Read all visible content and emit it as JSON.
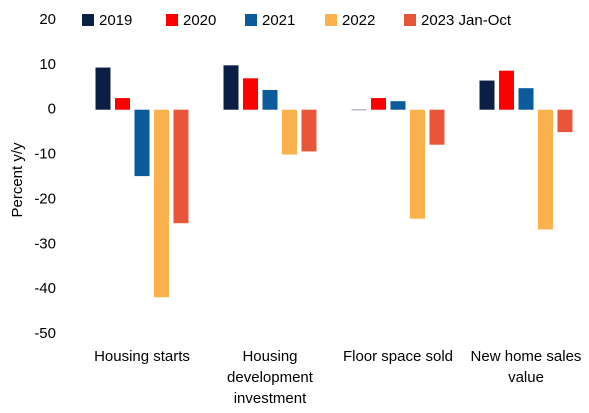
{
  "chart_data": {
    "type": "bar",
    "categories": [
      "Housing starts",
      "Housing development investment",
      "Floor space sold",
      "New home sales value"
    ],
    "series": [
      {
        "name": "2019",
        "color": "#0b1f44",
        "values": [
          9.4,
          9.9,
          -0.1,
          6.5
        ]
      },
      {
        "name": "2020",
        "color": "#ff0000",
        "values": [
          2.6,
          7.0,
          2.6,
          8.7
        ]
      },
      {
        "name": "2021",
        "color": "#0a5a9c",
        "values": [
          -14.8,
          4.4,
          1.9,
          4.8
        ]
      },
      {
        "name": "2022",
        "color": "#fbb24d",
        "values": [
          -41.8,
          -10.0,
          -24.3,
          -26.7
        ]
      },
      {
        "name": "2023 Jan-Oct",
        "color": "#e8563a",
        "values": [
          -25.3,
          -9.3,
          -7.8,
          -5.0
        ]
      }
    ],
    "y_label": "Percent y/y",
    "ylim": [
      -50,
      20
    ],
    "yticks": [
      -50,
      -40,
      -30,
      -20,
      -10,
      0,
      10,
      20
    ],
    "grid": false,
    "legend": "top"
  }
}
